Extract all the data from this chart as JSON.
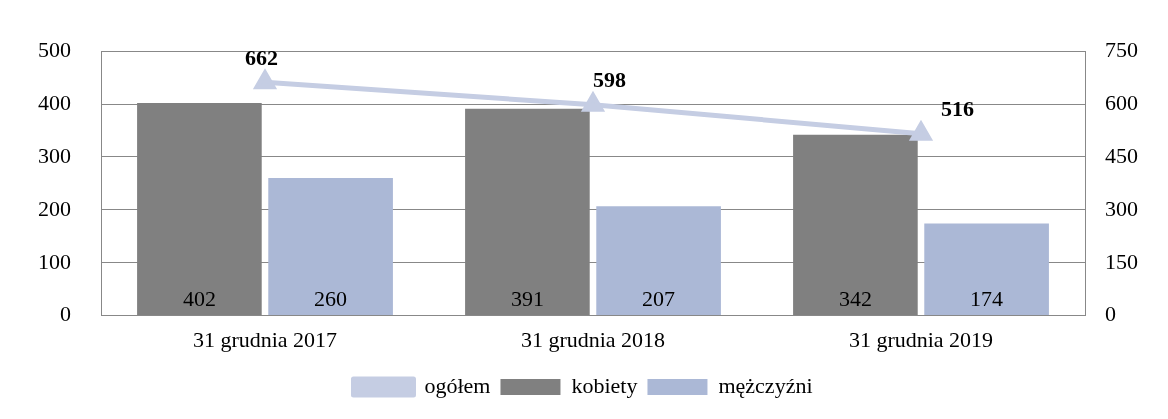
{
  "chart_data": {
    "type": "bar",
    "categories": [
      "31 grudnia 2017",
      "31 grudnia 2018",
      "31 grudnia 2019"
    ],
    "series": [
      {
        "name": "kobiety",
        "color": "#808080",
        "values": [
          402,
          391,
          342
        ]
      },
      {
        "name": "mężczyźni",
        "color": "#abb8d6",
        "values": [
          260,
          207,
          174
        ]
      },
      {
        "name": "ogółem",
        "type": "line",
        "axis": "y2",
        "color": "#c5cde3",
        "values": [
          662,
          598,
          516
        ]
      }
    ],
    "ylim": [
      0,
      500
    ],
    "yticks": [
      0,
      100,
      200,
      300,
      400,
      500
    ],
    "y2lim": [
      0,
      750
    ],
    "y2ticks": [
      0,
      150,
      300,
      450,
      600,
      750
    ],
    "grid": "y",
    "legend": "bottom",
    "marker": "triangle",
    "data_labels": true
  }
}
